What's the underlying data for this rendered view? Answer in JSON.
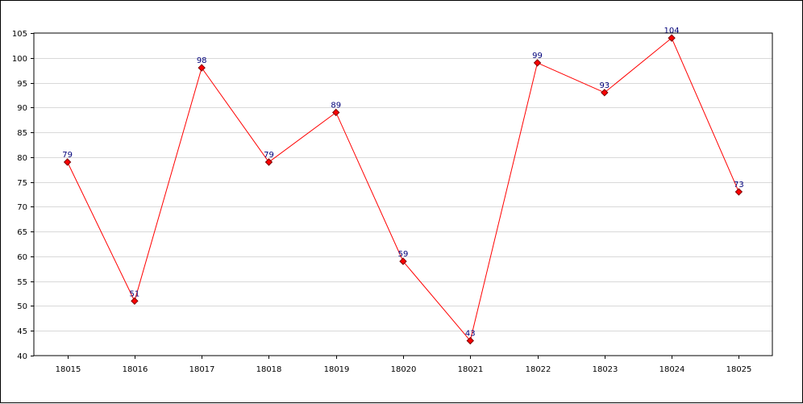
{
  "chart_data": {
    "type": "line",
    "title": "",
    "xlabel": "",
    "ylabel": "",
    "categories": [
      "18015",
      "18016",
      "18017",
      "18018",
      "18019",
      "18020",
      "18021",
      "18022",
      "18023",
      "18024",
      "18025"
    ],
    "series": [
      {
        "values": [
          79,
          51,
          98,
          79,
          89,
          59,
          43,
          99,
          93,
          104,
          73
        ],
        "color": "#ff0000",
        "marker_color": "#ff0000"
      }
    ],
    "ylim": [
      40,
      105
    ],
    "yticks": [
      40,
      45,
      50,
      55,
      60,
      65,
      70,
      75,
      80,
      85,
      90,
      95,
      100,
      105
    ],
    "grid": true,
    "legend": "none",
    "colors": {
      "data_label": "#00007a",
      "gridline": "#d9d9d9"
    }
  }
}
